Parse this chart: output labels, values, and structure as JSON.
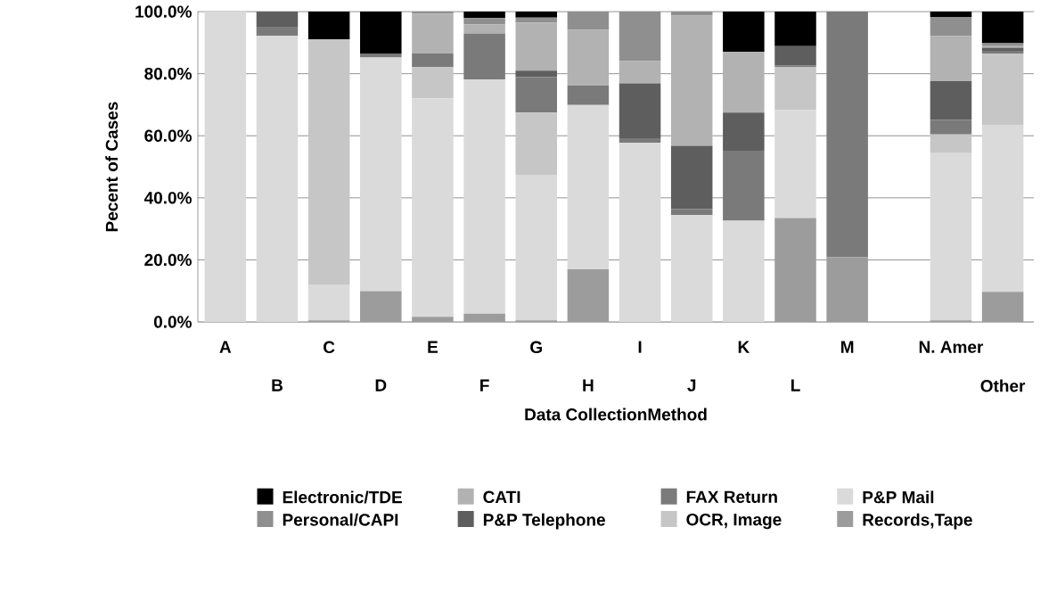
{
  "chart_data": {
    "type": "bar",
    "stacked": true,
    "xlabel": "Data CollectionMethod",
    "ylabel": "Pecent of Cases",
    "categories": [
      "A",
      "B",
      "C",
      "D",
      "E",
      "F",
      "G",
      "H",
      "I",
      "J",
      "K",
      "L",
      "M",
      null,
      "N. Amer",
      "Other"
    ],
    "ylim": [
      0,
      100
    ],
    "yticks": [
      {
        "value": 0,
        "label": "0.0%"
      },
      {
        "value": 20,
        "label": "20.0%"
      },
      {
        "value": 40,
        "label": "40.0%"
      },
      {
        "value": 60,
        "label": "60.0%"
      },
      {
        "value": 80,
        "label": "80.0%"
      },
      {
        "value": 100,
        "label": "100.0%"
      }
    ],
    "grid": "y",
    "legend": "bottom",
    "series": [
      {
        "name": "Records,Tape",
        "color": "#9c9c9c",
        "values": [
          0,
          0,
          0.5,
          9.9,
          1.7,
          2.7,
          0.5,
          17,
          0,
          0,
          0,
          33.5,
          20.9,
          0,
          0.5,
          9.7
        ]
      },
      {
        "name": "P&P Mail",
        "color": "#dadada",
        "values": [
          100,
          92.2,
          11.6,
          75.3,
          70.4,
          75.5,
          46.9,
          52.9,
          57.8,
          34.5,
          32.6,
          34.8,
          0,
          0,
          53.9,
          53.8
        ]
      },
      {
        "name": "OCR, Image",
        "color": "#c6c6c6",
        "values": [
          0,
          0,
          78.9,
          0,
          10.1,
          0,
          20.1,
          0,
          0,
          0,
          0,
          13.9,
          0,
          0,
          6,
          23
        ]
      },
      {
        "name": "FAX Return",
        "color": "#7a7a7a",
        "values": [
          0,
          2.9,
          0,
          1.3,
          4.3,
          14.8,
          11.4,
          6.3,
          1.4,
          1.9,
          22.6,
          0.5,
          79.1,
          0,
          4.8,
          0.9
        ]
      },
      {
        "name": "P&P Telephone",
        "color": "#5e5e5e",
        "values": [
          0,
          4.9,
          0,
          0,
          0,
          0,
          2.1,
          0,
          17.7,
          20.4,
          12.3,
          6.2,
          0,
          0,
          12.4,
          1
        ]
      },
      {
        "name": "CATI",
        "color": "#b2b2b2",
        "values": [
          0,
          0,
          0,
          0,
          12.9,
          2.9,
          15.5,
          17.9,
          7.2,
          41.9,
          19.5,
          0,
          0,
          0,
          14.6,
          0.5
        ]
      },
      {
        "name": "Personal/CAPI",
        "color": "#8f8f8f",
        "values": [
          0,
          0,
          0,
          0,
          0.6,
          2,
          1.6,
          5.9,
          15.9,
          1.3,
          0,
          0,
          0,
          0,
          6.1,
          0.9
        ]
      },
      {
        "name": "Electronic/TDE",
        "color": "#000000",
        "values": [
          0,
          0,
          9,
          13.5,
          0,
          2.1,
          1.9,
          0,
          0,
          0,
          13,
          11.1,
          0,
          0,
          1.7,
          10.2
        ]
      }
    ]
  }
}
